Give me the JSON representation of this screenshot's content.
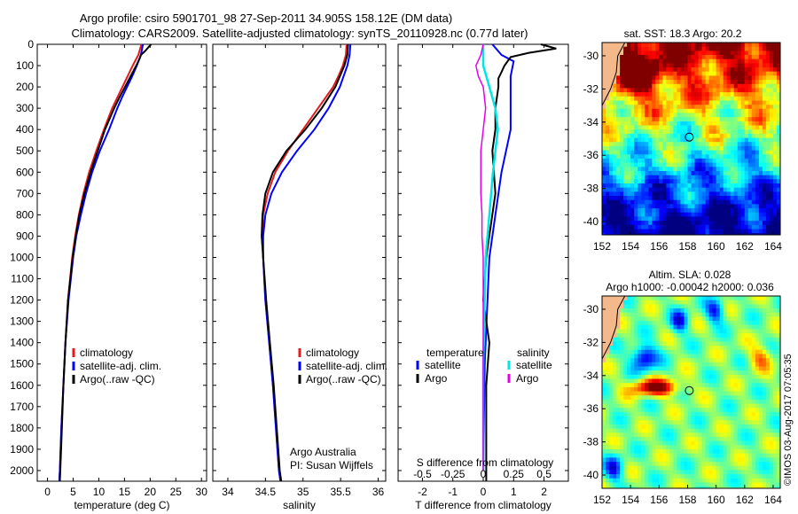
{
  "header": {
    "title_line1": "Argo profile: csiro 5901701_98 27-Sep-2011 34.905S 158.12E (DM data)",
    "title_line2": "Climatology: CARS2009. Satellite-adjusted climatology: synTS_20110928.nc (0.77d later)"
  },
  "credit": "©IMOS 03-Aug-2017 07:05:35",
  "colors": {
    "climatology": "#e41a1c",
    "satellite": "#0000ff",
    "argo": "#000000",
    "temp_diff_sat": "#0000ff",
    "sal_diff_sat": "#00e5e5",
    "sal_diff_argo": "#e600e6",
    "coast": "#f4b98a",
    "marker": "#000000"
  },
  "depth_ticks": [
    0,
    100,
    200,
    300,
    400,
    500,
    600,
    700,
    800,
    900,
    1000,
    1100,
    1200,
    1300,
    1400,
    1500,
    1600,
    1700,
    1800,
    1900,
    2000
  ],
  "chart_data": [
    {
      "type": "line",
      "xlabel": "temperature (deg C)",
      "xlim": [
        -2,
        31
      ],
      "ylim": [
        2050,
        0
      ],
      "x_ticks": [
        0,
        5,
        10,
        15,
        20,
        25,
        30
      ],
      "legend": [
        "climatology",
        "satellite-adj. clim.",
        "Argo(..raw -QC)"
      ],
      "series": [
        {
          "name": "climatology",
          "depth": [
            0,
            50,
            100,
            150,
            200,
            250,
            300,
            400,
            500,
            600,
            700,
            800,
            900,
            1000,
            1200,
            1400,
            1600,
            1800,
            2000,
            2050
          ],
          "values": [
            18.3,
            17.7,
            16.6,
            15.6,
            14.6,
            13.6,
            12.6,
            11.0,
            9.5,
            8.1,
            7.0,
            6.1,
            5.4,
            4.8,
            4.0,
            3.5,
            3.1,
            2.7,
            2.4,
            2.3
          ]
        },
        {
          "name": "satellite-adj. clim.",
          "depth": [
            0,
            50,
            100,
            150,
            200,
            250,
            300,
            400,
            500,
            600,
            700,
            800,
            900,
            1000,
            1200,
            1400,
            1600,
            1800,
            2000,
            2050
          ],
          "values": [
            18.6,
            18.2,
            17.4,
            16.5,
            15.5,
            14.5,
            13.6,
            12.0,
            10.2,
            8.7,
            7.5,
            6.5,
            5.6,
            5.0,
            4.1,
            3.5,
            3.1,
            2.7,
            2.4,
            2.3
          ]
        },
        {
          "name": "Argo(..raw -QC)",
          "depth": [
            0,
            10,
            30,
            50,
            70,
            100,
            150,
            200,
            250,
            300,
            400,
            500,
            600,
            700,
            800,
            900,
            1000,
            1200,
            1400,
            1600,
            1800,
            2000,
            2050
          ],
          "values": [
            20.2,
            19.8,
            19.1,
            18.2,
            17.9,
            17.3,
            16.2,
            15.1,
            14.0,
            13.0,
            11.2,
            9.8,
            8.4,
            7.2,
            6.2,
            5.5,
            4.9,
            4.0,
            3.5,
            3.1,
            2.8,
            2.5,
            2.4
          ]
        }
      ]
    },
    {
      "type": "line",
      "xlabel": "salinity",
      "xlim": [
        33.8,
        36.1
      ],
      "ylim": [
        2050,
        0
      ],
      "x_ticks": [
        34,
        34.5,
        35,
        35.5,
        36
      ],
      "legend": [
        "climatology",
        "satellite-adj. clim.",
        "Argo(..raw -QC)"
      ],
      "annotation": [
        "Argo Australia",
        "PI: Susan Wijffels"
      ],
      "series": [
        {
          "name": "climatology",
          "depth": [
            0,
            50,
            100,
            150,
            200,
            300,
            400,
            500,
            600,
            700,
            800,
            900,
            1000,
            1200,
            1400,
            1600,
            1800,
            2000,
            2050
          ],
          "values": [
            35.58,
            35.57,
            35.53,
            35.47,
            35.4,
            35.2,
            35.0,
            34.8,
            34.63,
            34.53,
            34.47,
            34.46,
            34.47,
            34.5,
            34.55,
            34.6,
            34.64,
            34.68,
            34.7
          ]
        },
        {
          "name": "satellite-adj. clim.",
          "depth": [
            0,
            50,
            100,
            150,
            200,
            300,
            400,
            500,
            600,
            700,
            800,
            900,
            1000,
            1200,
            1400,
            1600,
            1800,
            2000,
            2050
          ],
          "values": [
            35.63,
            35.62,
            35.59,
            35.54,
            35.49,
            35.34,
            35.15,
            34.92,
            34.72,
            34.58,
            34.5,
            34.47,
            34.47,
            34.5,
            34.55,
            34.6,
            34.64,
            34.68,
            34.7
          ]
        },
        {
          "name": "Argo(..raw -QC)",
          "depth": [
            0,
            50,
            100,
            150,
            200,
            300,
            400,
            500,
            600,
            700,
            800,
            900,
            1000,
            1200,
            1400,
            1600,
            1800,
            2000,
            2050
          ],
          "values": [
            35.6,
            35.59,
            35.55,
            35.49,
            35.43,
            35.25,
            35.03,
            34.78,
            34.6,
            34.5,
            34.46,
            34.45,
            34.47,
            34.51,
            34.56,
            34.61,
            34.65,
            34.69,
            34.71
          ]
        }
      ]
    },
    {
      "type": "line",
      "xlabel": "T difference from climatology",
      "xlabel2": "S difference from climatology",
      "xlim": [
        -2.8,
        2.8
      ],
      "ylim": [
        2050,
        0
      ],
      "x_ticks": [
        -2,
        -1,
        0,
        1,
        2
      ],
      "x2_ticks": [
        -0.5,
        -0.25,
        0,
        0.25,
        0.5
      ],
      "x2_scale": 4,
      "legend_temperature": [
        "temperature",
        "satellite",
        "Argo"
      ],
      "legend_salinity": [
        "salinity",
        "satellite",
        "Argo"
      ],
      "series": [
        {
          "name": "temperature satellite",
          "depth": [
            0,
            50,
            80,
            150,
            250,
            400,
            600,
            800,
            1000,
            1500,
            2000
          ],
          "values": [
            0.3,
            0.6,
            1.0,
            0.9,
            0.9,
            0.9,
            0.6,
            0.4,
            0.2,
            0.05,
            0.0
          ]
        },
        {
          "name": "temperature Argo",
          "depth": [
            0,
            20,
            40,
            60,
            100,
            130,
            160,
            200,
            300,
            400,
            500,
            700,
            1000,
            1200,
            1400,
            1600,
            1800,
            2000,
            2050
          ],
          "values": [
            1.9,
            2.4,
            1.5,
            0.9,
            0.7,
            0.6,
            0.5,
            0.5,
            0.4,
            0.4,
            0.3,
            0.4,
            0.1,
            0.0,
            0.2,
            0.1,
            0.1,
            0.1,
            0.1
          ]
        },
        {
          "name": "salinity satellite",
          "depth": [
            0,
            100,
            200,
            300,
            400,
            500,
            600,
            800,
            1000,
            1500,
            2000
          ],
          "values": [
            0.0,
            0.0,
            0.05,
            0.1,
            0.12,
            0.1,
            0.08,
            0.05,
            0.02,
            0.0,
            0.0
          ]
        },
        {
          "name": "salinity Argo",
          "depth": [
            0,
            50,
            100,
            150,
            200,
            300,
            400,
            500,
            600,
            700,
            800,
            900,
            1000,
            1500,
            2000
          ],
          "values": [
            0.0,
            -0.02,
            -0.06,
            -0.04,
            0.0,
            0.02,
            0.0,
            -0.02,
            -0.02,
            -0.02,
            -0.01,
            -0.01,
            0.0,
            0.0,
            0.0
          ]
        }
      ]
    }
  ],
  "maps": [
    {
      "title_lines": [
        "sat. SST: 18.3 Argo: 20.2"
      ],
      "lon_ticks": [
        152,
        154,
        156,
        158,
        160,
        162,
        164
      ],
      "lat_ticks": [
        -30,
        -32,
        -34,
        -36,
        -38,
        -40
      ],
      "lon_range": [
        152,
        164.5
      ],
      "lat_range": [
        -40.8,
        -29.2
      ],
      "marker": [
        158.12,
        -34.905
      ]
    },
    {
      "title_lines": [
        "Altim. SLA: 0.028",
        "Argo h1000: -0.00042 h2000: 0.036"
      ],
      "lon_ticks": [
        152,
        154,
        156,
        158,
        160,
        162,
        164
      ],
      "lat_ticks": [
        -30,
        -32,
        -34,
        -36,
        -38,
        -40
      ],
      "lon_range": [
        152,
        164.5
      ],
      "lat_range": [
        -40.8,
        -29.2
      ],
      "marker": [
        158.12,
        -34.905
      ]
    }
  ]
}
